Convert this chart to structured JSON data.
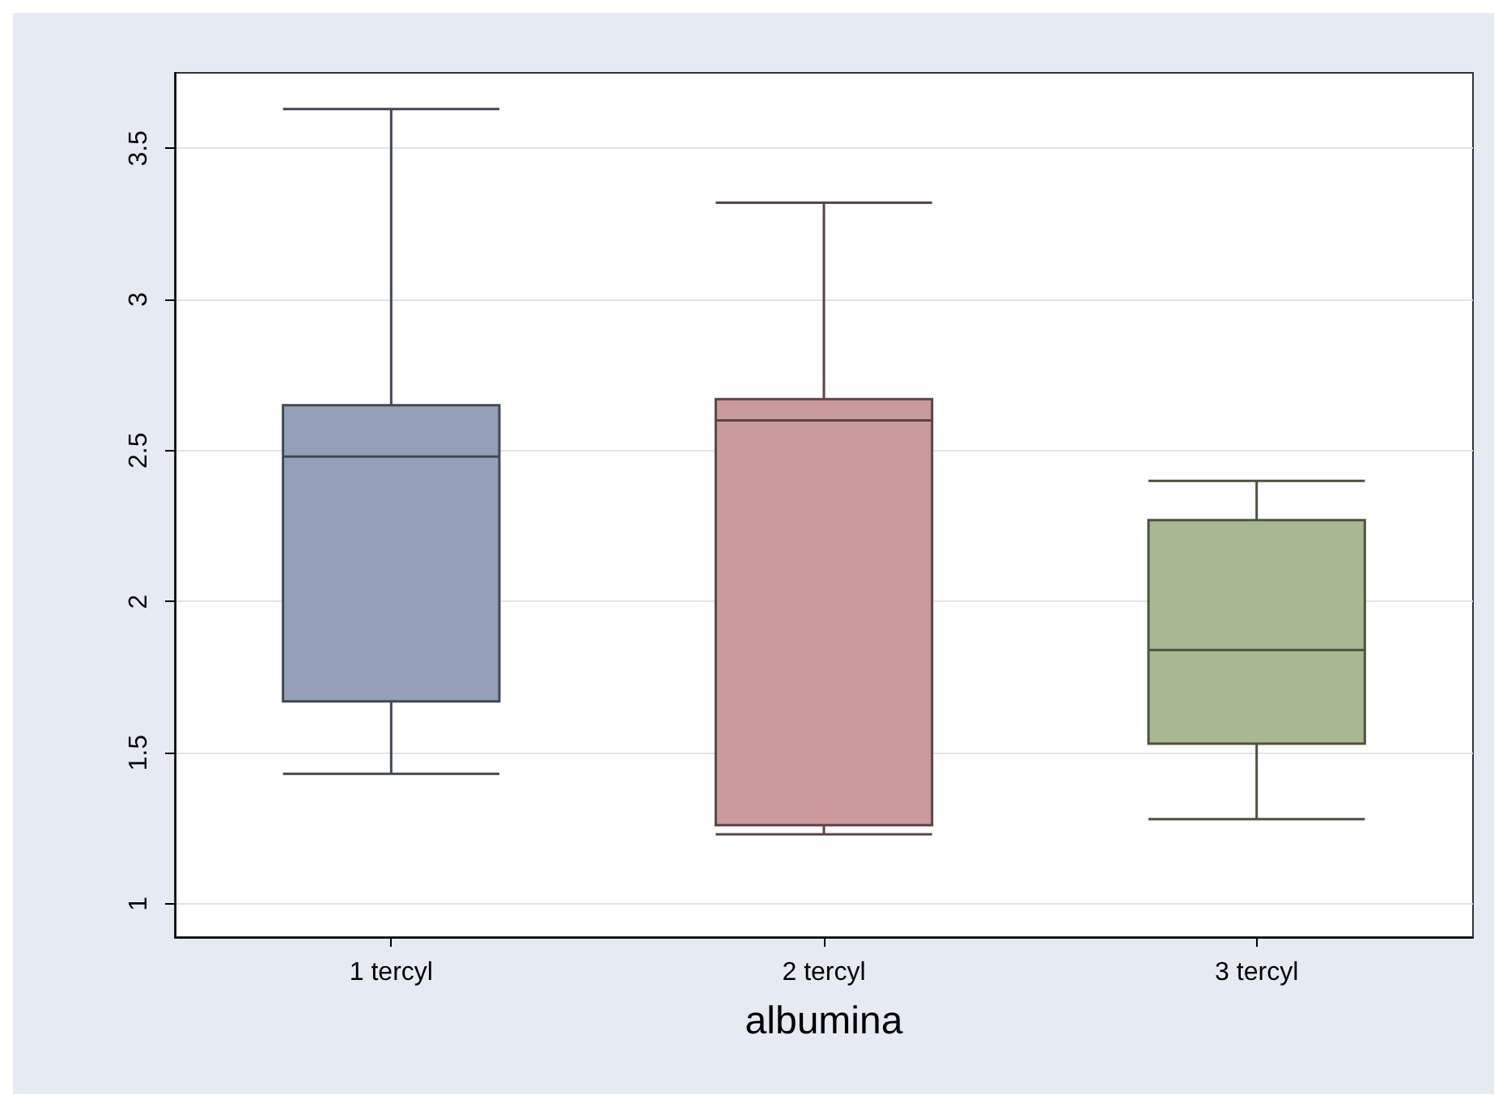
{
  "chart_data": {
    "type": "box",
    "xlabel": "albumina",
    "categories": [
      "1 tercyl",
      "2 tercyl",
      "3 tercyl"
    ],
    "boxes": [
      {
        "low": 1.43,
        "q1": 1.67,
        "median": 2.48,
        "q3": 2.65,
        "high": 3.63
      },
      {
        "low": 1.23,
        "q1": 1.26,
        "median": 2.6,
        "q3": 2.67,
        "high": 3.32
      },
      {
        "low": 1.28,
        "q1": 1.53,
        "median": 1.84,
        "q3": 2.27,
        "high": 2.4
      }
    ],
    "colors": [
      "#93a0b8",
      "#c9999c",
      "#a8b890"
    ],
    "ylim": [
      0.89,
      3.75
    ],
    "yticks": [
      1,
      1.5,
      2,
      2.5,
      3,
      3.5
    ],
    "grid": "y"
  }
}
